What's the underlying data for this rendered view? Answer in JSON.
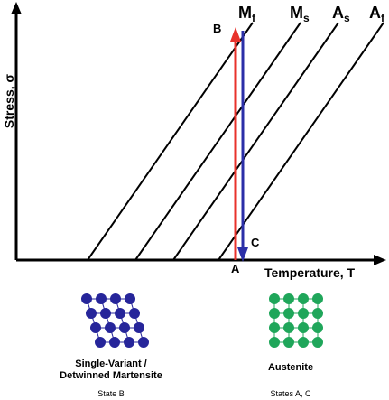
{
  "axes": {
    "y_label": "Stress, σ",
    "x_label": "Temperature, T"
  },
  "lines": [
    {
      "key": "Mf",
      "main": "M",
      "sub": "f"
    },
    {
      "key": "Ms",
      "main": "M",
      "sub": "s"
    },
    {
      "key": "As",
      "main": "A",
      "sub": "s"
    },
    {
      "key": "Af",
      "main": "A",
      "sub": "f"
    }
  ],
  "points": {
    "a": "A",
    "b": "B",
    "c": "C"
  },
  "martensite": {
    "line1": "Single-Variant /",
    "line2": "Detwinned Martensite",
    "state": "State B"
  },
  "austenite": {
    "line1": "Austenite",
    "state": "States A, C"
  },
  "colors": {
    "loading_arrow": "#e8322b",
    "unloading_arrow": "#2b2fa8",
    "martensite_atoms": "#26259a",
    "austenite_atoms": "#1fa65a",
    "lines": "#000000"
  }
}
